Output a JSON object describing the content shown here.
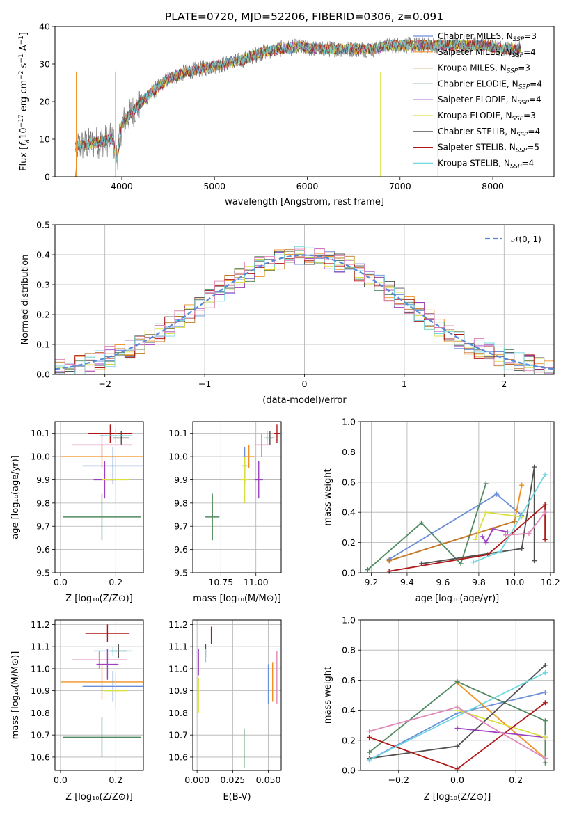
{
  "chart_data": [
    {
      "type": "line",
      "panel": "spectrum",
      "title": "PLATE=0720, MJD=52206, FIBERID=0306, z=0.091",
      "xlabel": "wavelength [Angstrom, rest frame]",
      "ylabel_html": "Flux [<tspan font-style='italic'>f</tspan><tspan font-style='italic' font-size='9' dy='3'>λ</tspan><tspan dy='-3'>10</tspan><tspan font-size='9' dy='-5'>−17</tspan><tspan dy='5'> erg cm</tspan><tspan font-size='9' dy='-5'>−2</tspan><tspan dy='5'> s</tspan><tspan font-size='9' dy='-5'>−1</tspan><tspan dy='5'> A</tspan><tspan font-size='9' dy='-5'>−1</tspan><tspan dy='5'>]</tspan>",
      "xlim": [
        3280,
        8660
      ],
      "ylim": [
        0,
        40
      ],
      "xticks": [
        4000,
        5000,
        6000,
        7000,
        8000
      ],
      "yticks": [
        0,
        10,
        20,
        30,
        40
      ],
      "continuum": [
        [
          3500,
          8
        ],
        [
          3700,
          9
        ],
        [
          3900,
          10
        ],
        [
          3950,
          5
        ],
        [
          4000,
          14
        ],
        [
          4100,
          17
        ],
        [
          4300,
          22
        ],
        [
          4500,
          26
        ],
        [
          4700,
          28
        ],
        [
          4900,
          29
        ],
        [
          5100,
          30
        ],
        [
          5300,
          31
        ],
        [
          5500,
          33
        ],
        [
          5700,
          34
        ],
        [
          5900,
          34.5
        ],
        [
          6100,
          34
        ],
        [
          6300,
          34
        ],
        [
          6500,
          34
        ],
        [
          6700,
          34
        ],
        [
          6900,
          35
        ],
        [
          7100,
          35
        ],
        [
          7300,
          35
        ],
        [
          7500,
          35
        ],
        [
          7700,
          35
        ],
        [
          7900,
          35
        ],
        [
          8100,
          34
        ],
        [
          8300,
          34
        ]
      ],
      "series": [
        {
          "name": "Chabrier MILES, N",
          "sub": "SSP",
          "suffix": "=3",
          "color": "#6a8fd8"
        },
        {
          "name": "Salpeter MILES, N",
          "sub": "SSP",
          "suffix": "=4",
          "color": "#ef9020"
        },
        {
          "name": "Kroupa MILES, N",
          "sub": "SSP",
          "suffix": "=3",
          "color": "#c0782a"
        },
        {
          "name": "Chabrier ELODIE, N",
          "sub": "SSP",
          "suffix": "=4",
          "color": "#508a60"
        },
        {
          "name": "Salpeter ELODIE, N",
          "sub": "SSP",
          "suffix": "=4",
          "color": "#9c40c0"
        },
        {
          "name": "Kroupa ELODIE, N",
          "sub": "SSP",
          "suffix": "=3",
          "color": "#d8e040"
        },
        {
          "name": "Chabrier STELIB, N",
          "sub": "SSP",
          "suffix": "=4",
          "color": "#505050"
        },
        {
          "name": "Salpeter STELIB, N",
          "sub": "SSP",
          "suffix": "=5",
          "color": "#b01818"
        },
        {
          "name": "Kroupa STELIB, N",
          "sub": "SSP",
          "suffix": "=4",
          "color": "#70d8e0"
        }
      ]
    },
    {
      "type": "histogram",
      "panel": "residuals",
      "xlabel": "(data-model)/error",
      "ylabel": "Normed distribution",
      "xlim": [
        -2.5,
        2.5
      ],
      "ylim": [
        0,
        0.5
      ],
      "xticks": [
        -2,
        -1,
        0,
        1,
        2
      ],
      "yticks": [
        0.0,
        0.1,
        0.2,
        0.3,
        0.4,
        0.5
      ],
      "ytick_labels": [
        "0.0",
        "0.1",
        "0.2",
        "0.3",
        "0.4",
        "0.5"
      ],
      "legend": "𝒩(0, 1)",
      "bin_width": 0.1,
      "reference_color": "#5588d8",
      "histogram_colors": [
        "#6a8fd8",
        "#ef9020",
        "#c0782a",
        "#508a60",
        "#9c40c0",
        "#d8e040",
        "#505050",
        "#b01818",
        "#70d8e0",
        "#e088b8"
      ]
    },
    {
      "type": "scatter",
      "panel": "age-vs-Z",
      "xlabel": "Z [log₁₀(Z/Z⊙)]",
      "ylabel": "age  [log₁₀(age/yr)]",
      "xlim": [
        -0.02,
        0.3
      ],
      "ylim": [
        9.5,
        10.15
      ],
      "xticks": [
        0.0,
        0.2
      ],
      "xtick_labels": [
        "0.0",
        "0.2"
      ],
      "yticks": [
        9.5,
        9.6,
        9.7,
        9.8,
        9.9,
        10.0,
        10.1
      ],
      "ytick_labels": [
        "9.5",
        "9.6",
        "9.7",
        "9.8",
        "9.9",
        "10.0",
        "10.1"
      ],
      "points": [
        {
          "x": 0.18,
          "y": 10.1,
          "xerr": 0.08,
          "yerr": 0.04,
          "color": "#b01818"
        },
        {
          "x": 0.22,
          "y": 10.08,
          "xerr": 0.03,
          "yerr": 0.03,
          "color": "#505050"
        },
        {
          "x": 0.2,
          "y": 10.09,
          "xerr": 0.06,
          "yerr": 0.03,
          "color": "#70d8e0"
        },
        {
          "x": 0.15,
          "y": 10.05,
          "xerr": 0.11,
          "yerr": 0.05,
          "color": "#e088b8"
        },
        {
          "x": 0.15,
          "y": 10.0,
          "xerr": 0.15,
          "yerr": 0.05,
          "color": "#ef9020"
        },
        {
          "x": 0.19,
          "y": 9.96,
          "xerr": 0.11,
          "yerr": 0.08,
          "color": "#6a8fd8"
        },
        {
          "x": 0.16,
          "y": 9.9,
          "xerr": 0.04,
          "yerr": 0.08,
          "color": "#9c40c0"
        },
        {
          "x": 0.2,
          "y": 9.9,
          "xerr": 0.05,
          "yerr": 0.1,
          "color": "#d8e040"
        },
        {
          "x": 0.15,
          "y": 9.74,
          "xerr": 0.14,
          "yerr": 0.1,
          "color": "#508a60"
        }
      ]
    },
    {
      "type": "scatter",
      "panel": "age-vs-mass",
      "xlabel": "mass [log₁₀(M/M⊙)]",
      "ylim": [
        9.5,
        10.15
      ],
      "xlim": [
        10.55,
        11.18
      ],
      "xticks": [
        10.75,
        11.0
      ],
      "xtick_labels": [
        "10.75",
        "11.00"
      ],
      "yticks": [
        9.5,
        9.6,
        9.7,
        9.8,
        9.9,
        10.0,
        10.1
      ],
      "ytick_labels": [
        "9.5",
        "9.6",
        "9.7",
        "9.8",
        "9.9",
        "10.0",
        "10.1"
      ],
      "points": [
        {
          "x": 11.15,
          "y": 10.1,
          "xerr": 0.02,
          "yerr": 0.04,
          "color": "#b01818"
        },
        {
          "x": 11.1,
          "y": 10.08,
          "xerr": 0.03,
          "yerr": 0.03,
          "color": "#505050"
        },
        {
          "x": 11.08,
          "y": 10.08,
          "xerr": 0.02,
          "yerr": 0.03,
          "color": "#70d8e0"
        },
        {
          "x": 11.04,
          "y": 10.05,
          "xerr": 0.05,
          "yerr": 0.05,
          "color": "#e088b8"
        },
        {
          "x": 10.95,
          "y": 10.0,
          "xerr": 0.04,
          "yerr": 0.05,
          "color": "#ef9020"
        },
        {
          "x": 10.92,
          "y": 9.96,
          "xerr": 0.02,
          "yerr": 0.08,
          "color": "#6a8fd8"
        },
        {
          "x": 11.02,
          "y": 9.9,
          "xerr": 0.03,
          "yerr": 0.08,
          "color": "#9c40c0"
        },
        {
          "x": 10.92,
          "y": 9.9,
          "xerr": 0.03,
          "yerr": 0.1,
          "color": "#d8e040"
        },
        {
          "x": 10.69,
          "y": 9.74,
          "xerr": 0.05,
          "yerr": 0.1,
          "color": "#508a60"
        }
      ]
    },
    {
      "type": "line",
      "panel": "mass-weight-vs-age",
      "xlabel": "age  [log₁₀(age/yr)]",
      "ylabel": "mass weight",
      "xlim": [
        9.14,
        10.22
      ],
      "ylim": [
        0,
        1
      ],
      "xticks": [
        9.2,
        9.4,
        9.6,
        9.8,
        10.0,
        10.2
      ],
      "xtick_labels": [
        "9.2",
        "9.4",
        "9.6",
        "9.8",
        "10.0",
        "10.2"
      ],
      "yticks": [
        0.0,
        0.2,
        0.4,
        0.6,
        0.8,
        1.0
      ],
      "ytick_labels": [
        "0.0",
        "0.2",
        "0.4",
        "0.6",
        "0.8",
        "1.0"
      ],
      "series": [
        {
          "color": "#6a8fd8",
          "x": [
            9.3,
            9.9,
            10.04
          ],
          "y": [
            0.09,
            0.52,
            0.38
          ]
        },
        {
          "color": "#ef9020",
          "x": [
            9.3,
            10.0,
            10.04
          ],
          "y": [
            0.08,
            0.34,
            0.58
          ]
        },
        {
          "color": "#c0782a",
          "x": [
            9.3,
            10.0
          ],
          "y": [
            0.08,
            0.34
          ]
        },
        {
          "color": "#508a60",
          "x": [
            9.18,
            9.48,
            9.7,
            9.84
          ],
          "y": [
            0.02,
            0.33,
            0.06,
            0.59
          ]
        },
        {
          "color": "#9c40c0",
          "x": [
            9.82,
            9.84,
            9.88,
            9.96
          ],
          "y": [
            0.24,
            0.2,
            0.29,
            0.27
          ]
        },
        {
          "color": "#d8e040",
          "x": [
            9.78,
            9.84,
            10.04
          ],
          "y": [
            0.22,
            0.4,
            0.37
          ]
        },
        {
          "color": "#505050",
          "x": [
            9.48,
            10.04,
            10.11,
            10.11
          ],
          "y": [
            0.06,
            0.16,
            0.7,
            0.08
          ]
        },
        {
          "color": "#b01818",
          "x": [
            9.3,
            9.85,
            10.17,
            10.17
          ],
          "y": [
            0.01,
            0.12,
            0.45,
            0.22
          ]
        },
        {
          "color": "#70d8e0",
          "x": [
            9.77,
            9.92,
            10.17
          ],
          "y": [
            0.07,
            0.14,
            0.65
          ]
        },
        {
          "color": "#e088b8",
          "x": [
            9.95,
            10.08,
            10.17
          ],
          "y": [
            0.25,
            0.26,
            0.4
          ]
        }
      ]
    },
    {
      "type": "scatter",
      "panel": "mass-vs-Z",
      "xlabel": "Z [log₁₀(Z/Z⊙)]",
      "ylabel": "mass [log₁₀(M/M⊙)]",
      "xlim": [
        -0.02,
        0.3
      ],
      "ylim": [
        10.54,
        11.22
      ],
      "xticks": [
        0.0,
        0.2
      ],
      "xtick_labels": [
        "0.0",
        "0.2"
      ],
      "yticks": [
        10.6,
        10.7,
        10.8,
        10.9,
        11.0,
        11.1,
        11.2
      ],
      "ytick_labels": [
        "10.6",
        "10.7",
        "10.8",
        "10.9",
        "11.0",
        "11.1",
        "11.2"
      ],
      "points": [
        {
          "x": 0.17,
          "y": 11.16,
          "xerr": 0.08,
          "yerr": 0.04,
          "color": "#b01818"
        },
        {
          "x": 0.21,
          "y": 11.08,
          "xerr": 0.03,
          "yerr": 0.03,
          "color": "#505050"
        },
        {
          "x": 0.19,
          "y": 11.08,
          "xerr": 0.07,
          "yerr": 0.02,
          "color": "#70d8e0"
        },
        {
          "x": 0.14,
          "y": 11.04,
          "xerr": 0.1,
          "yerr": 0.04,
          "color": "#e088b8"
        },
        {
          "x": 0.17,
          "y": 11.02,
          "xerr": 0.04,
          "yerr": 0.07,
          "color": "#9c40c0"
        },
        {
          "x": 0.15,
          "y": 10.94,
          "xerr": 0.15,
          "yerr": 0.08,
          "color": "#ef9020"
        },
        {
          "x": 0.19,
          "y": 10.92,
          "xerr": 0.11,
          "yerr": 0.07,
          "color": "#6a8fd8"
        },
        {
          "x": 0.2,
          "y": 10.9,
          "xerr": 0.04,
          "yerr": 0.08,
          "color": "#d8e040"
        },
        {
          "x": 0.15,
          "y": 10.69,
          "xerr": 0.14,
          "yerr": 0.09,
          "color": "#508a60"
        }
      ]
    },
    {
      "type": "scatter",
      "panel": "mass-vs-EBV",
      "xlabel": "E(B-V)",
      "xlim": [
        -0.003,
        0.059
      ],
      "ylim": [
        10.54,
        11.22
      ],
      "xticks": [
        0.0,
        0.025,
        0.05
      ],
      "xtick_labels": [
        "0.000",
        "0.025",
        "0.050"
      ],
      "yticks": [
        10.6,
        10.7,
        10.8,
        10.9,
        11.0,
        11.1,
        11.2
      ],
      "ytick_labels": [
        "10.6",
        "10.7",
        "10.8",
        "10.9",
        "11.0",
        "11.1",
        "11.2"
      ],
      "points": [
        {
          "x": 0.01,
          "y": 11.15,
          "xerr": 0.0,
          "yerr": 0.04,
          "color": "#b01818"
        },
        {
          "x": 0.006,
          "y": 11.08,
          "xerr": 0.0,
          "yerr": 0.03,
          "color": "#505050"
        },
        {
          "x": 0.006,
          "y": 11.06,
          "xerr": 0.0,
          "yerr": 0.03,
          "color": "#70d8e0"
        },
        {
          "x": 0.001,
          "y": 11.03,
          "xerr": 0.0,
          "yerr": 0.06,
          "color": "#9c40c0"
        },
        {
          "x": 0.001,
          "y": 10.88,
          "xerr": 0.0,
          "yerr": 0.08,
          "color": "#d8e040"
        },
        {
          "x": 0.056,
          "y": 10.96,
          "xerr": 0.0,
          "yerr": 0.12,
          "color": "#e088b8"
        },
        {
          "x": 0.053,
          "y": 10.94,
          "xerr": 0.0,
          "yerr": 0.09,
          "color": "#ef9020"
        },
        {
          "x": 0.05,
          "y": 10.93,
          "xerr": 0.0,
          "yerr": 0.09,
          "color": "#6a8fd8"
        },
        {
          "x": 0.033,
          "y": 10.64,
          "xerr": 0.0,
          "yerr": 0.09,
          "color": "#508a60"
        }
      ]
    },
    {
      "type": "line",
      "panel": "mass-weight-vs-Z",
      "xlabel": "Z [log₁₀(Z/Z⊙)]",
      "ylabel": "mass weight",
      "xlim": [
        -0.33,
        0.33
      ],
      "ylim": [
        0,
        1
      ],
      "xticks": [
        -0.2,
        0.0,
        0.2
      ],
      "xtick_labels": [
        "−0.2",
        "0.0",
        "0.2"
      ],
      "yticks": [
        0.0,
        0.2,
        0.4,
        0.6,
        0.8,
        1.0
      ],
      "ytick_labels": [
        "0.0",
        "0.2",
        "0.4",
        "0.6",
        "0.8",
        "1.0"
      ],
      "series": [
        {
          "color": "#6a8fd8",
          "x": [
            -0.3,
            0.0,
            0.3
          ],
          "y": [
            0.07,
            0.38,
            0.52
          ]
        },
        {
          "color": "#ef9020",
          "x": [
            0.0,
            0.3
          ],
          "y": [
            0.58,
            0.08
          ]
        },
        {
          "color": "#508a60",
          "x": [
            -0.3,
            0.0,
            0.3,
            0.3
          ],
          "y": [
            0.12,
            0.59,
            0.33,
            0.05
          ]
        },
        {
          "color": "#9c40c0",
          "x": [
            0.0,
            0.3
          ],
          "y": [
            0.28,
            0.22
          ]
        },
        {
          "color": "#d8e040",
          "x": [
            0.0,
            0.3
          ],
          "y": [
            0.4,
            0.22
          ]
        },
        {
          "color": "#505050",
          "x": [
            -0.3,
            0.0,
            0.3
          ],
          "y": [
            0.08,
            0.16,
            0.7
          ]
        },
        {
          "color": "#b01818",
          "x": [
            -0.3,
            0.0,
            0.3
          ],
          "y": [
            0.22,
            0.01,
            0.45
          ]
        },
        {
          "color": "#70d8e0",
          "x": [
            -0.3,
            0.3
          ],
          "y": [
            0.07,
            0.65
          ]
        },
        {
          "color": "#e088b8",
          "x": [
            -0.3,
            0.0,
            0.3
          ],
          "y": [
            0.26,
            0.42,
            0.08
          ]
        }
      ]
    }
  ]
}
